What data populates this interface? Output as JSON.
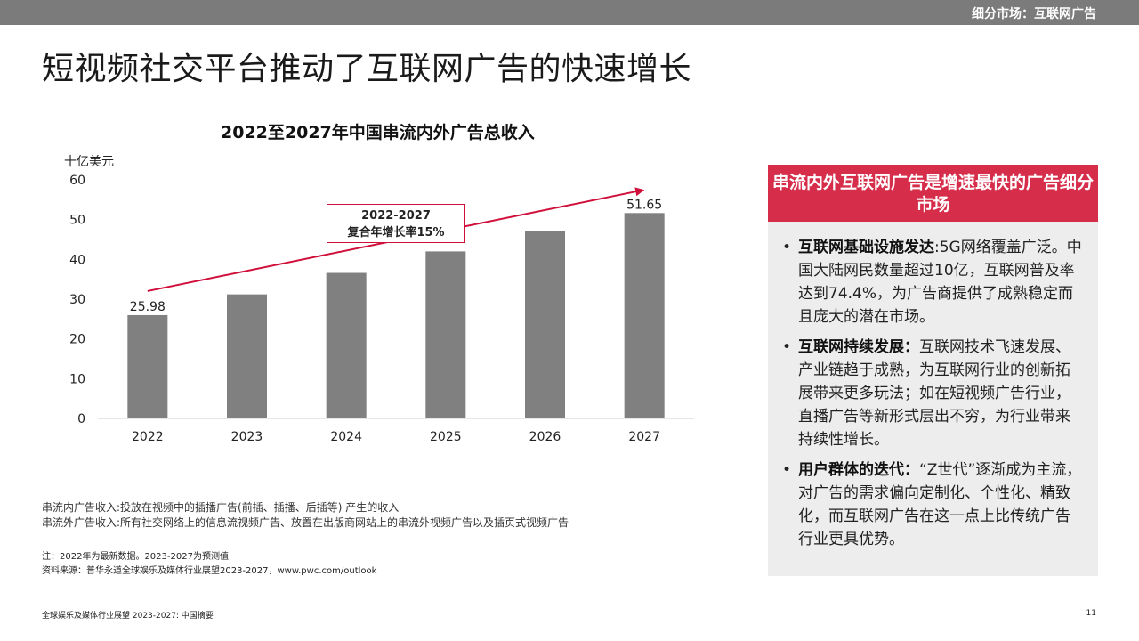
{
  "header": {
    "section_label": "细分市场：互联网广告"
  },
  "page_title": "短视频社交平台推动了互联网广告的快速增长",
  "chart_data": {
    "type": "bar",
    "title": "2022至2027年中国串流内外广告总收入",
    "ylabel": "十亿美元",
    "categories": [
      "2022",
      "2023",
      "2024",
      "2025",
      "2026",
      "2027"
    ],
    "values": [
      25.98,
      31.2,
      36.6,
      42.0,
      47.2,
      51.65
    ],
    "data_labels": {
      "0": "25.98",
      "5": "51.65"
    },
    "ylim": [
      0,
      60
    ],
    "yticks": [
      0,
      10,
      20,
      30,
      40,
      50,
      60
    ],
    "bar_color": "#808080",
    "trend_arrow_color": "#d0103a",
    "grid": false,
    "callout": {
      "line1": "2022-2027",
      "line2": "复合年增长率15%"
    }
  },
  "definitions": {
    "line1": "串流内广告收入:投放在视频中的插播广告(前插、插播、后插等) 产生的收入",
    "line2": "串流外广告收入:所有社交网络上的信息流视频广告、放置在出版商网站上的串流外视频广告以及插页式视频广告"
  },
  "notes": {
    "note": "注：2022年为最新数据。2023-2027为预测值",
    "source": "资料来源：普华永道全球娱乐及媒体行业展望2023-2027，www.pwc.com/outlook"
  },
  "panel": {
    "heading": "串流内外互联网广告是增速最快的广告细分市场",
    "header_color": "#d62d4a",
    "bullets": [
      {
        "bold": "互联网基础设施发达",
        "text": ":5G网络覆盖广泛。中国大陆网民数量超过10亿，互联网普及率达到74.4%，为广告商提供了成熟稳定而且庞大的潜在市场。"
      },
      {
        "bold": "互联网持续发展：",
        "text": "互联网技术飞速发展、产业链趋于成熟，为互联网行业的创新拓展带来更多玩法；如在短视频广告行业，直播广告等新形式层出不穷，为行业带来持续性增长。"
      },
      {
        "bold": "用户群体的迭代：",
        "text": "“Z世代”逐渐成为主流，对广告的需求偏向定制化、个性化、精致化，而互联网广告在这一点上比传统广告行业更具优势。"
      }
    ]
  },
  "footer": {
    "left": "全球娱乐及媒体行业展望 2023-2027: 中国摘要",
    "page": "11"
  }
}
